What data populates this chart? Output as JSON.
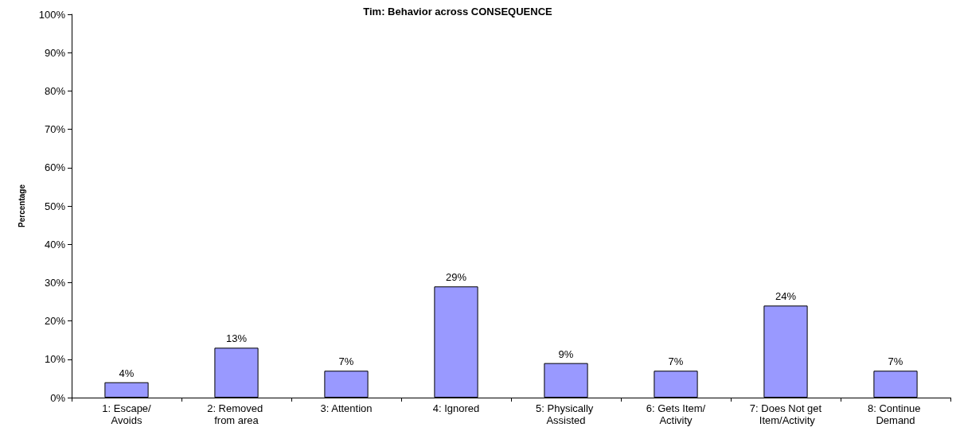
{
  "chart_data": {
    "type": "bar",
    "title": "Tim: Behavior across CONSEQUENCE",
    "ylabel": "Percentage",
    "categories": [
      "1: Escape/Avoids",
      "2: Removed from area",
      "3: Attention",
      "4: Ignored",
      "5: Physically Assisted",
      "6: Gets Item/Activity",
      "7: Does Not get Item/Activity",
      "8: Continue Demand"
    ],
    "values": [
      4,
      13,
      7,
      29,
      9,
      7,
      24,
      7
    ],
    "value_labels": [
      "4%",
      "13%",
      "7%",
      "29%",
      "9%",
      "7%",
      "24%",
      "7%"
    ],
    "color": "#9999ff",
    "ylim": [
      0,
      100
    ],
    "yticks": [
      {
        "value": 0,
        "label": "0%"
      },
      {
        "value": 10,
        "label": "10%"
      },
      {
        "value": 20,
        "label": "20%"
      },
      {
        "value": 30,
        "label": "30%"
      },
      {
        "value": 40,
        "label": "40%"
      },
      {
        "value": 50,
        "label": "50%"
      },
      {
        "value": 60,
        "label": "60%"
      },
      {
        "value": 70,
        "label": "70%"
      },
      {
        "value": 80,
        "label": "80%"
      },
      {
        "value": 90,
        "label": "90%"
      },
      {
        "value": 100,
        "label": "100%"
      }
    ],
    "grid": false
  }
}
